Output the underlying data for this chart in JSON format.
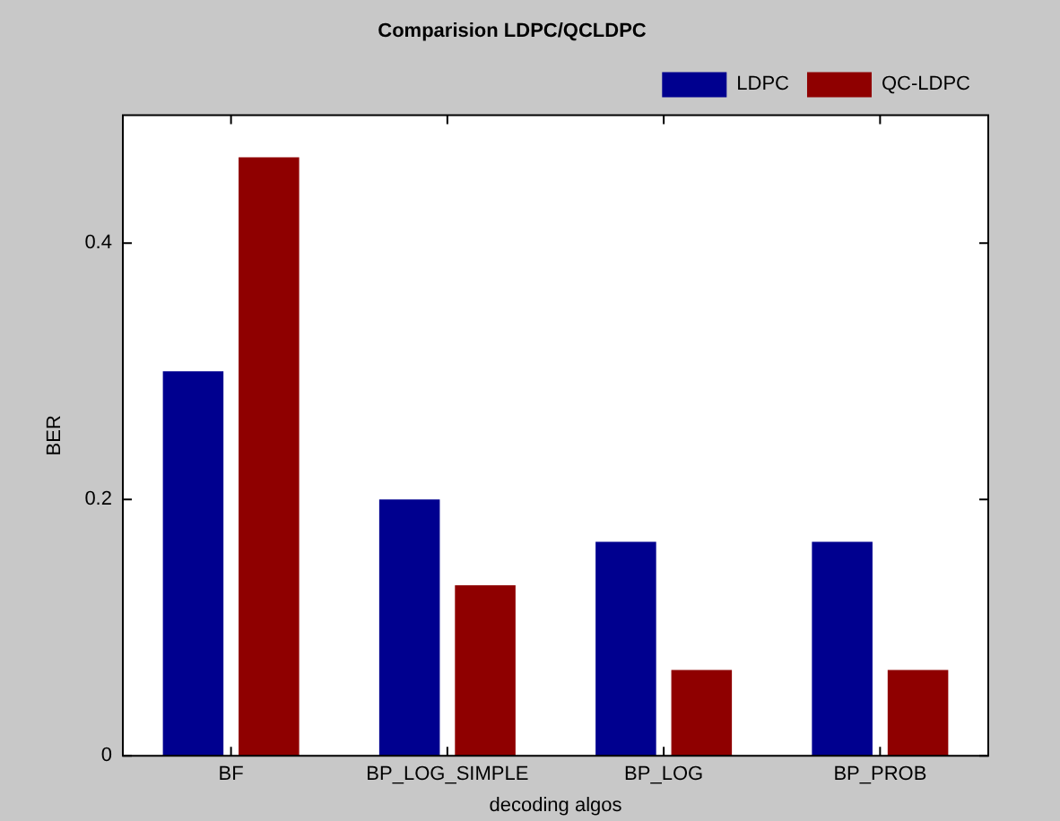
{
  "chart_data": {
    "type": "bar",
    "title": "Comparision LDPC/QCLDPC",
    "xlabel": "decoding algos",
    "ylabel": "BER",
    "categories": [
      "BF",
      "BP_LOG_SIMPLE",
      "BP_LOG",
      "BP_PROB"
    ],
    "series": [
      {
        "name": "LDPC",
        "color": "#00008f",
        "values": [
          0.3,
          0.2,
          0.167,
          0.167
        ]
      },
      {
        "name": "QC-LDPC",
        "color": "#8f0000",
        "values": [
          0.467,
          0.133,
          0.067,
          0.067
        ]
      }
    ],
    "ylim": [
      0,
      0.5
    ],
    "yticks": [
      0,
      0.2,
      0.4
    ],
    "grid": false,
    "legend": "top right"
  }
}
